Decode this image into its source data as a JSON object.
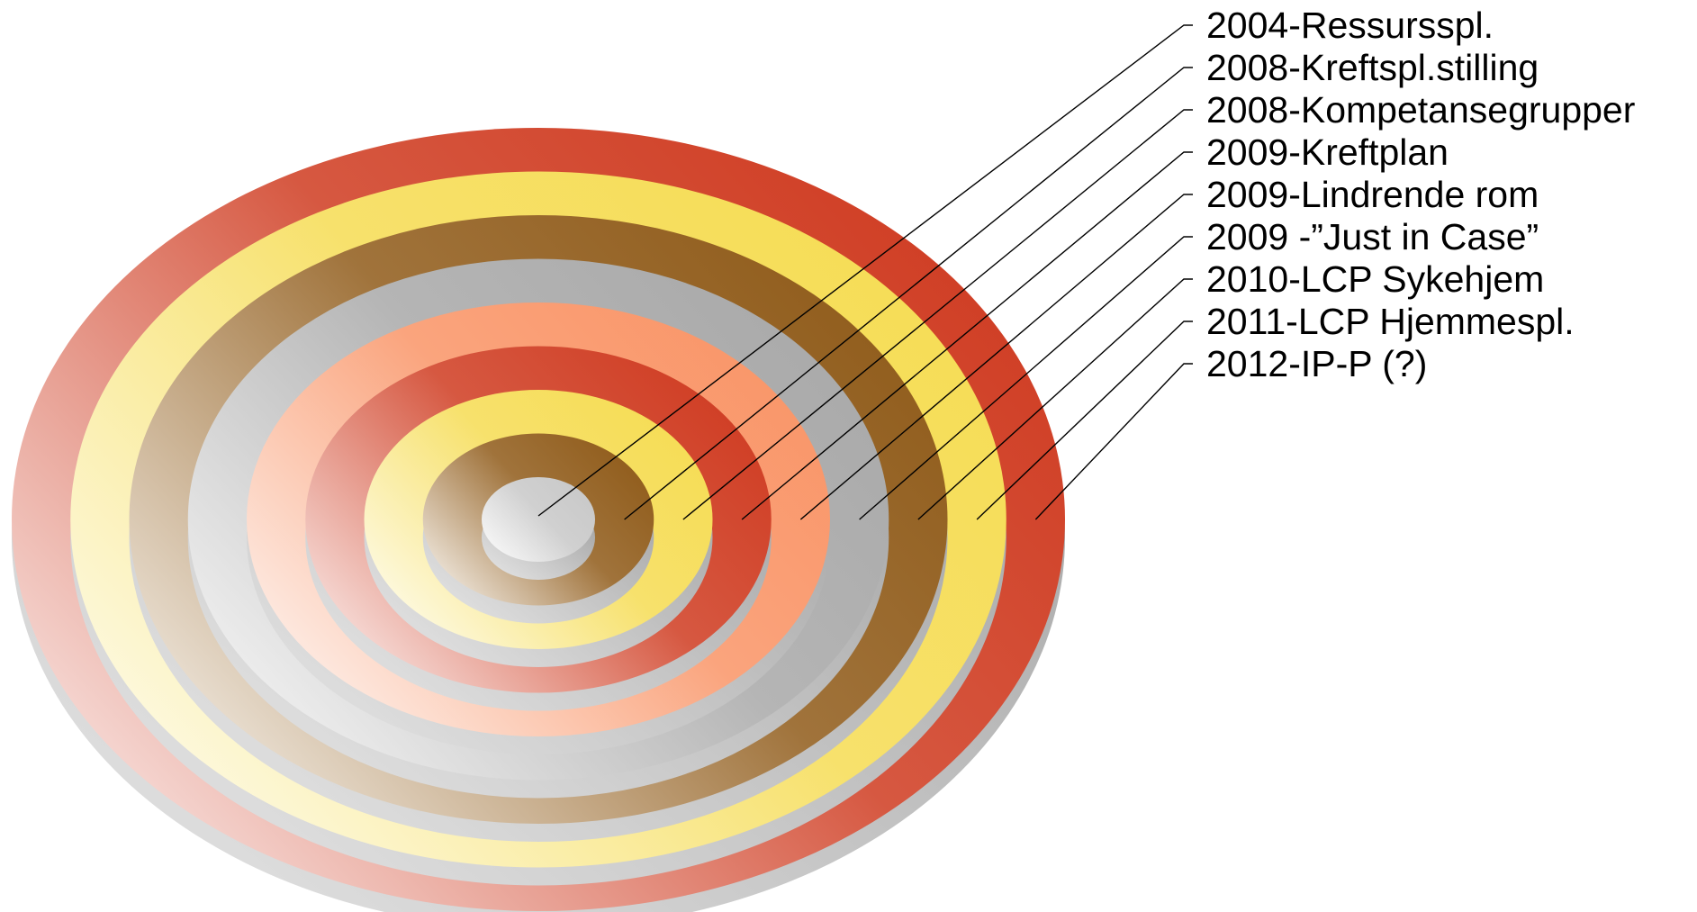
{
  "diagram": {
    "type": "concentric-rings",
    "items": [
      {
        "label": "2004-Ressursspl.",
        "color": "#c8c8c8"
      },
      {
        "label": "2008-Kreftspl.stilling",
        "color": "#8f5a18"
      },
      {
        "label": "2008-Kompetansegrupper",
        "color": "#f6dc52"
      },
      {
        "label": "2009-Kreftplan",
        "color": "#cf3a20"
      },
      {
        "label": "2009-Lindrende rom",
        "color": "#f99466"
      },
      {
        "label": "2009 -”Just in Case”",
        "color": "#a8a8a8"
      },
      {
        "label": "2010-LCP Sykehjem",
        "color": "#8f5a18"
      },
      {
        "label": "2011-LCP Hjemmespl.",
        "color": "#f6dc52"
      },
      {
        "label": "2012-IP-P (?)",
        "color": "#cf3a20"
      }
    ]
  }
}
